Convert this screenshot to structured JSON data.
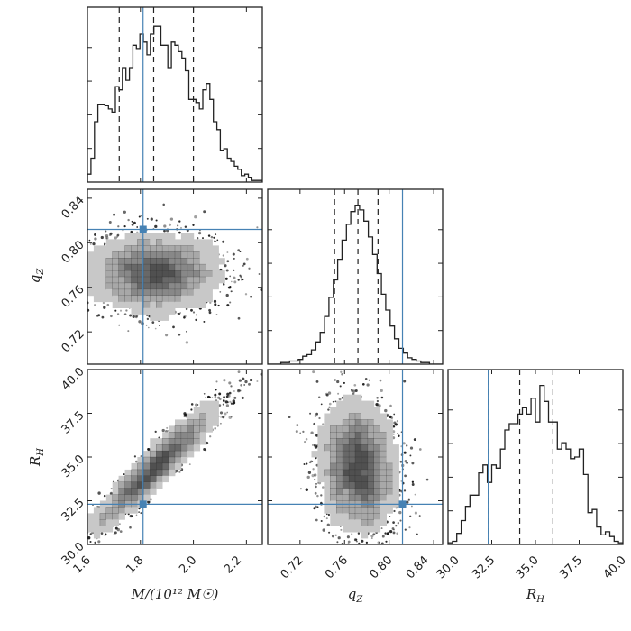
{
  "chart_data": {
    "type": "corner",
    "colors": {
      "truth": "#4682b4",
      "hist": "#222222",
      "frame": "#222222"
    },
    "parameters": [
      {
        "key": "M",
        "label": "M/(10¹² M☉)",
        "range": [
          1.6,
          2.26
        ],
        "ticks": [
          "1.6",
          "1.8",
          "2.0",
          "2.2"
        ],
        "tick_values": [
          1.6,
          1.8,
          2.0,
          2.2
        ],
        "truth": 1.81,
        "quantiles": [
          1.72,
          1.85,
          2.0
        ],
        "sample_mean": 1.86,
        "sample_sd": 0.12
      },
      {
        "key": "qZ",
        "label": "q",
        "label_sub": "Z",
        "range": [
          0.691,
          0.848
        ],
        "ticks": [
          "0.72",
          "0.76",
          "0.80",
          "0.84"
        ],
        "tick_values": [
          0.72,
          0.76,
          0.8,
          0.84
        ],
        "truth": 0.812,
        "quantiles": [
          0.751,
          0.772,
          0.79
        ],
        "sample_mean": 0.772,
        "sample_sd": 0.018
      },
      {
        "key": "RH",
        "label": "R",
        "label_sub": "H",
        "range": [
          30,
          40
        ],
        "ticks": [
          "30.0",
          "32.5",
          "35.0",
          "37.5",
          "40.0"
        ],
        "tick_values": [
          30,
          32.5,
          35,
          37.5,
          40
        ],
        "truth": 32.3,
        "quantiles": [
          32.3,
          34.1,
          36.0
        ],
        "sample_mean": 34.2,
        "sample_sd": 1.6
      }
    ],
    "histograms": {
      "M": [
        0.05,
        0.15,
        0.38,
        0.49,
        0.49,
        0.48,
        0.46,
        0.44,
        0.6,
        0.58,
        0.72,
        0.64,
        0.72,
        0.86,
        0.84,
        0.93,
        0.88,
        0.8,
        0.93,
        0.98,
        0.98,
        0.86,
        0.86,
        0.72,
        0.88,
        0.86,
        0.82,
        0.78,
        0.7,
        0.52,
        0.52,
        0.5,
        0.46,
        0.58,
        0.62,
        0.52,
        0.38,
        0.33,
        0.2,
        0.21,
        0.15,
        0.13,
        0.1,
        0.08,
        0.04,
        0.05,
        0.03,
        0.01,
        0.01,
        0.01
      ],
      "qZ": [
        0,
        0,
        0,
        0.01,
        0.01,
        0.02,
        0.02,
        0.03,
        0.05,
        0.06,
        0.09,
        0.14,
        0.2,
        0.3,
        0.42,
        0.53,
        0.66,
        0.78,
        0.88,
        0.96,
        1.0,
        0.97,
        0.9,
        0.8,
        0.69,
        0.57,
        0.44,
        0.34,
        0.24,
        0.16,
        0.1,
        0.07,
        0.04,
        0.03,
        0.02,
        0.01,
        0.01,
        0,
        0,
        0
      ],
      "RH": [
        0.01,
        0.02,
        0.07,
        0.15,
        0.24,
        0.31,
        0.31,
        0.45,
        0.5,
        0.39,
        0.5,
        0.48,
        0.6,
        0.72,
        0.76,
        0.76,
        0.82,
        0.86,
        0.82,
        0.92,
        0.77,
        1.0,
        0.9,
        0.77,
        0.77,
        0.6,
        0.64,
        0.6,
        0.54,
        0.55,
        0.6,
        0.44,
        0.2,
        0.22,
        0.11,
        0.06,
        0.08,
        0.05,
        0.02,
        0.01
      ]
    },
    "correlations": {
      "M_qZ": 0.0,
      "M_RH": 0.95,
      "qZ_RH": -0.35
    },
    "grid": false
  }
}
